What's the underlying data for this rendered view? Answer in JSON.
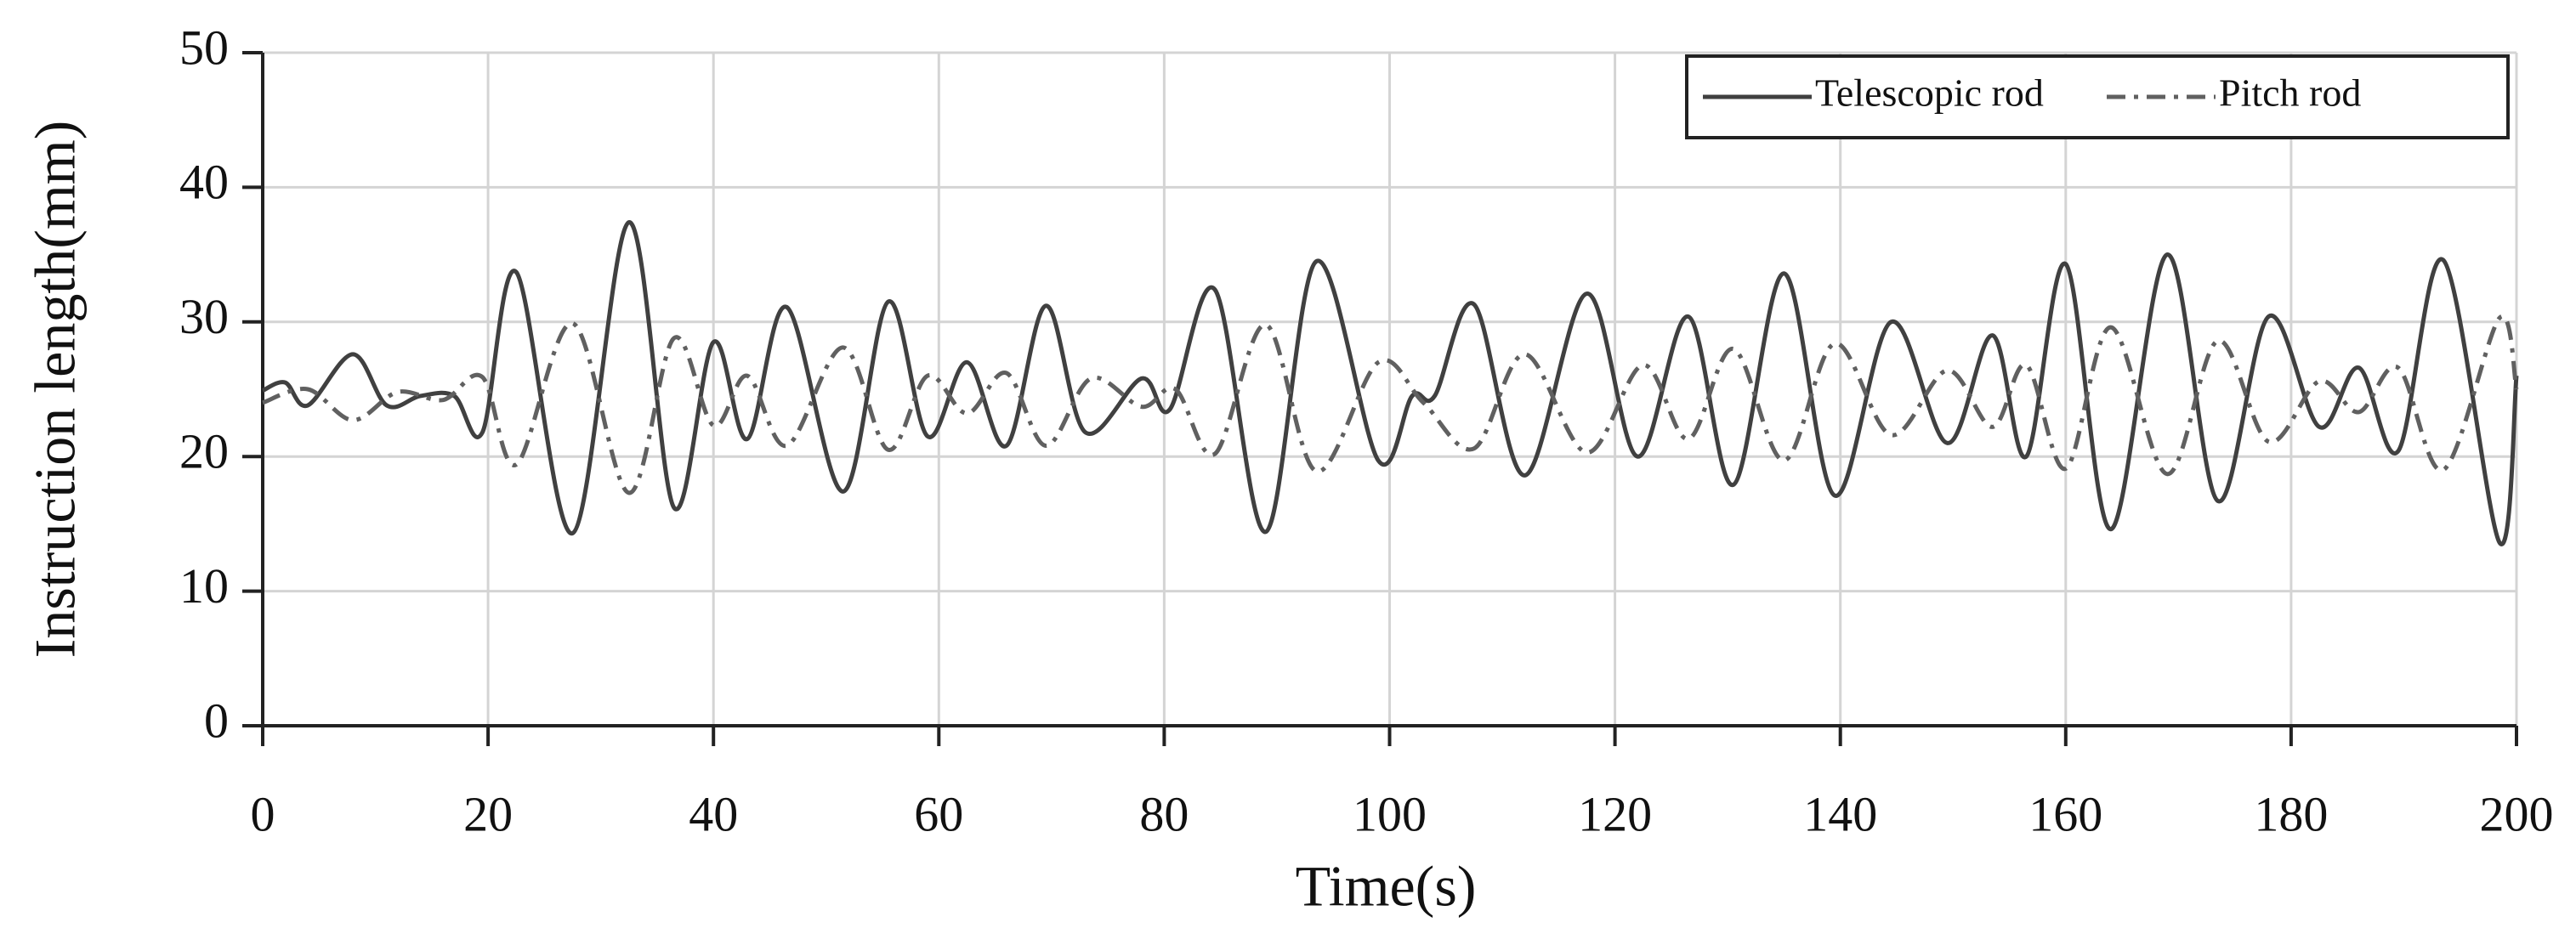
{
  "chart_data": {
    "type": "line",
    "xlabel": "Time(s)",
    "ylabel": "Instruction length(mm)",
    "xlim": [
      0,
      200
    ],
    "xticks": [
      0,
      20,
      40,
      60,
      80,
      100,
      120,
      140,
      160,
      180,
      200
    ],
    "ylim": [
      0,
      50
    ],
    "yticks": [
      0,
      10,
      20,
      30,
      40,
      50
    ],
    "grid": true,
    "legend": "top-right",
    "series": [
      {
        "name": "Telescopic rod",
        "color": "#404040",
        "dash": "solid",
        "x": [
          0,
          2,
          4,
          8,
          11,
          14,
          17,
          19.5,
          22.5,
          27.5,
          32.5,
          36.5,
          40,
          43,
          46.5,
          51.5,
          55.5,
          59,
          62.5,
          66,
          69.5,
          73,
          78,
          80.5,
          84.5,
          89,
          93.5,
          99,
          102,
          104,
          107.5,
          112,
          117.5,
          122,
          126.5,
          130.5,
          135,
          139.5,
          144.5,
          149.5,
          153.5,
          156.5,
          160,
          164,
          169,
          173.5,
          178,
          182.5,
          186,
          189.5,
          193.5,
          198.5,
          200
        ],
        "values": [
          24.9,
          25.5,
          23.8,
          27.6,
          23.8,
          24.5,
          24.5,
          21.8,
          33.7,
          14.3,
          37.4,
          16.2,
          28.5,
          21.3,
          31.1,
          17.4,
          31.5,
          21.5,
          27,
          20.8,
          31.2,
          21.8,
          25.8,
          23.5,
          32.4,
          14.4,
          34.5,
          19.7,
          24.5,
          24.5,
          31.3,
          18.6,
          32.1,
          20,
          30.4,
          17.9,
          33.6,
          17.1,
          30,
          21,
          29,
          20,
          34.3,
          14.6,
          35,
          16.7,
          30.4,
          22.2,
          26.6,
          20.4,
          34.6,
          13.6,
          26
        ]
      },
      {
        "name": "Pitch rod",
        "color": "#606060",
        "dash": "dashdot",
        "x": [
          0,
          4,
          8,
          12,
          16,
          19.5,
          22.5,
          27.5,
          32.5,
          36.5,
          40,
          43,
          46.5,
          51.5,
          55.5,
          59,
          62.5,
          66,
          69.5,
          73.5,
          78,
          81,
          84.5,
          89,
          93.5,
          99,
          103,
          107.5,
          112,
          117.5,
          122.5,
          126.5,
          130.5,
          135,
          139.5,
          144.5,
          149.5,
          153.5,
          156.5,
          160,
          164,
          169,
          173.5,
          178,
          182.5,
          186,
          189.5,
          193.5,
          198.5,
          200
        ],
        "values": [
          24,
          25,
          22.7,
          24.8,
          24.2,
          25.9,
          19.4,
          29.9,
          17.3,
          28.8,
          22.3,
          26,
          20.8,
          28.1,
          20.5,
          26,
          23.2,
          26.2,
          20.8,
          25.8,
          23.7,
          25,
          20.2,
          29.8,
          18.9,
          27,
          24,
          20.6,
          27.6,
          20.3,
          26.8,
          21.3,
          28,
          19.7,
          28.4,
          21.6,
          26.4,
          22.2,
          26.8,
          19.1,
          29.6,
          18.7,
          28.6,
          21.1,
          25.6,
          23.3,
          26.6,
          19,
          30.3,
          25
        ]
      }
    ]
  }
}
